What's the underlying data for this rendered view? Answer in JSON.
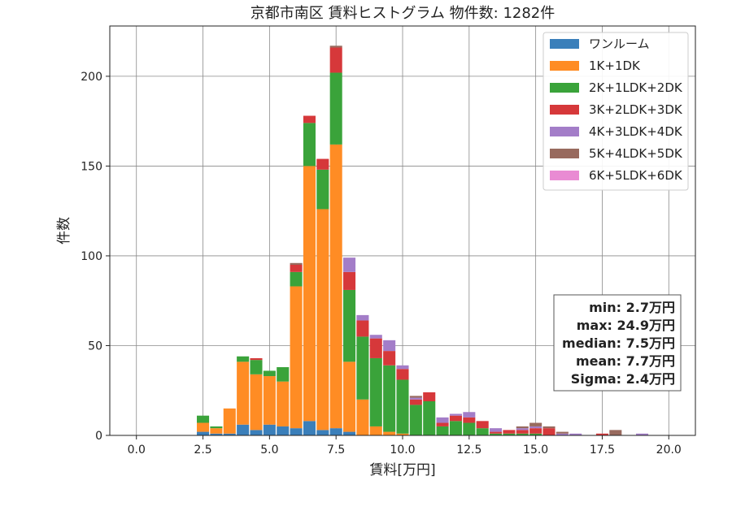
{
  "chart_data": {
    "type": "bar",
    "stacked": true,
    "title": "京都市南区 賃料ヒストグラム 物件数: 1282件",
    "xlabel": "賃料[万円]",
    "ylabel": "件数",
    "xlim": [
      -1.0,
      21.0
    ],
    "ylim": [
      0,
      228
    ],
    "xticks": [
      "0.0",
      "2.5",
      "5.0",
      "7.5",
      "10.0",
      "12.5",
      "15.0",
      "17.5",
      "20.0"
    ],
    "yticks": [
      "0",
      "50",
      "100",
      "150",
      "200"
    ],
    "grid": true,
    "legend_position": "top-right",
    "bin_width": 0.5,
    "x": [
      2.5,
      3.0,
      3.5,
      4.0,
      4.5,
      5.0,
      5.5,
      6.0,
      6.5,
      7.0,
      7.5,
      8.0,
      8.5,
      9.0,
      9.5,
      10.0,
      10.5,
      11.0,
      11.5,
      12.0,
      12.5,
      13.0,
      13.5,
      14.0,
      14.5,
      15.0,
      15.5,
      16.0,
      16.5,
      17.0,
      17.5,
      18.0,
      18.5,
      19.0
    ],
    "series": [
      {
        "name": "ワンルーム",
        "color": "#3a7fba",
        "values": [
          2,
          1,
          1,
          6,
          3,
          6,
          5,
          4,
          8,
          3,
          4,
          2,
          0,
          0,
          0,
          0,
          0,
          0,
          0,
          0,
          0,
          0,
          0,
          0,
          0,
          0,
          0,
          0,
          0,
          0,
          0,
          0,
          0,
          0
        ]
      },
      {
        "name": "1K+1DK",
        "color": "#ff8c24",
        "values": [
          5,
          3,
          14,
          35,
          31,
          27,
          25,
          79,
          142,
          123,
          158,
          39,
          20,
          5,
          2,
          1,
          0,
          0,
          0,
          0,
          0,
          0,
          0,
          0,
          0,
          0,
          0,
          0,
          0,
          0,
          0,
          0,
          0,
          0
        ]
      },
      {
        "name": "2K+1LDK+2DK",
        "color": "#3aa33a",
        "values": [
          4,
          1,
          0,
          3,
          8,
          3,
          8,
          8,
          24,
          22,
          40,
          40,
          35,
          38,
          37,
          30,
          17,
          19,
          5,
          8,
          7,
          4,
          1,
          1,
          1,
          1,
          0,
          0,
          0,
          0,
          0,
          0,
          0,
          0
        ]
      },
      {
        "name": "3K+2LDK+3DK",
        "color": "#d6383a",
        "values": [
          0,
          0,
          0,
          0,
          1,
          0,
          0,
          4,
          4,
          6,
          14,
          10,
          9,
          11,
          8,
          6,
          3,
          5,
          2,
          3,
          3,
          4,
          1,
          2,
          2,
          3,
          4,
          0,
          0,
          0,
          1,
          0,
          0,
          0
        ]
      },
      {
        "name": "4K+3LDK+4DK",
        "color": "#a37dc8",
        "values": [
          0,
          0,
          0,
          0,
          0,
          0,
          0,
          0,
          0,
          0,
          0,
          8,
          3,
          2,
          6,
          2,
          1,
          0,
          3,
          1,
          3,
          0,
          2,
          0,
          1,
          1,
          0,
          1,
          1,
          0,
          0,
          0,
          0,
          1
        ]
      },
      {
        "name": "5K+4LDK+5DK",
        "color": "#986a5e",
        "values": [
          0,
          0,
          0,
          0,
          0,
          0,
          0,
          1,
          0,
          0,
          1,
          0,
          0,
          0,
          0,
          0,
          1,
          0,
          0,
          0,
          0,
          0,
          0,
          0,
          1,
          2,
          1,
          1,
          0,
          0,
          0,
          3,
          0,
          0
        ]
      },
      {
        "name": "6K+5LDK+6DK",
        "color": "#e98bd3",
        "values": [
          0,
          0,
          0,
          0,
          0,
          0,
          0,
          0,
          0,
          0,
          0,
          0,
          0,
          0,
          0,
          0,
          0,
          0,
          0,
          0,
          0,
          0,
          0,
          0,
          0,
          0,
          0,
          0,
          0,
          0,
          0,
          0,
          0,
          0
        ]
      }
    ],
    "stats": {
      "min": "min: 2.7万円",
      "max": "max: 24.9万円",
      "median": "median: 7.5万円",
      "mean": "mean: 7.7万円",
      "sigma": "Sigma: 2.4万円"
    }
  }
}
